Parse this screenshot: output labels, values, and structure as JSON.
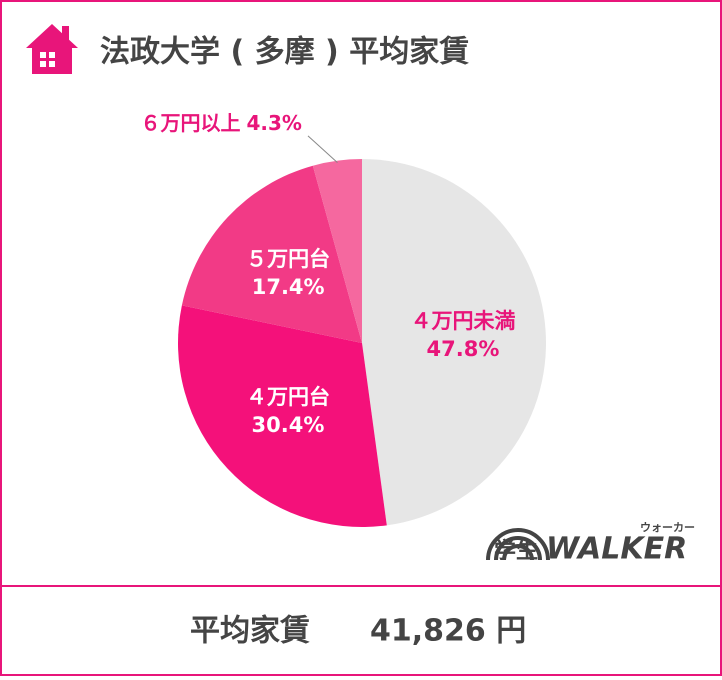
{
  "chart_data": {
    "type": "pie",
    "title": "法政大学 ( 多摩 ) 平均家賃",
    "categories": [
      "４万円未満",
      "４万円台",
      "５万円台",
      "６万円以上"
    ],
    "values": [
      47.8,
      30.4,
      17.4,
      4.3
    ],
    "value_labels": [
      "47.8%",
      "30.4%",
      "17.4%",
      "4.3%"
    ],
    "colors": [
      "#e6e6e6",
      "#f4117a",
      "#f23a86",
      "#f5689f"
    ]
  },
  "summary": {
    "label": "平均家賃",
    "value": "41,826 円"
  },
  "logo": {
    "text": "学生",
    "brand": "WALKER",
    "kana": "ウォーカー"
  }
}
